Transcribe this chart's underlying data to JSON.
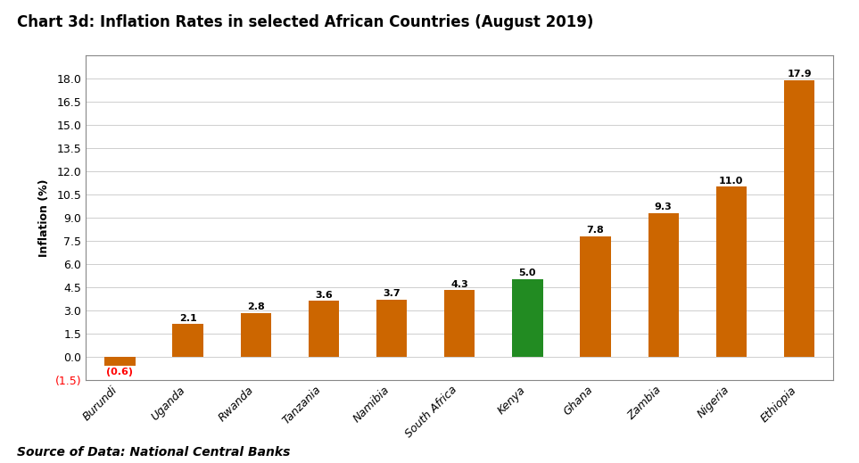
{
  "title": "Chart 3d: Inflation Rates in selected African Countries (August 2019)",
  "source": "Source of Data: National Central Banks",
  "categories": [
    "Burundi",
    "Uganda",
    "Rwanda",
    "Tanzania",
    "Namibia",
    "South Africa",
    "Kenya",
    "Ghana",
    "Zambia",
    "Nigeria",
    "Ethiopia"
  ],
  "values": [
    -0.6,
    2.1,
    2.8,
    3.6,
    3.7,
    4.3,
    5.0,
    7.8,
    9.3,
    11.0,
    17.9
  ],
  "bar_colors": [
    "#CC6600",
    "#CC6600",
    "#CC6600",
    "#CC6600",
    "#CC6600",
    "#CC6600",
    "#228B22",
    "#CC6600",
    "#CC6600",
    "#CC6600",
    "#CC6600"
  ],
  "bar_highlight": [
    "#E87820",
    "#E87820",
    "#E87820",
    "#E87820",
    "#E87820",
    "#E87820",
    "#32CD32",
    "#E87820",
    "#E87820",
    "#E87820",
    "#E87820"
  ],
  "ylabel": "Inflation (%)",
  "ylim": [
    -1.5,
    19.5
  ],
  "yticks": [
    -1.5,
    0.0,
    1.5,
    3.0,
    4.5,
    6.0,
    7.5,
    9.0,
    10.5,
    12.0,
    13.5,
    15.0,
    16.5,
    18.0
  ],
  "ytick_labels": [
    "(1.5)",
    "0.0",
    "1.5",
    "3.0",
    "4.5",
    "6.0",
    "7.5",
    "9.0",
    "10.5",
    "12.0",
    "13.5",
    "15.0",
    "16.5",
    "18.0"
  ],
  "negative_label_color": "#FF0000",
  "title_fontsize": 12,
  "label_fontsize": 9,
  "axis_fontsize": 9,
  "bar_label_fontsize": 8,
  "background_color": "#FFFFFF",
  "plot_background": "#FFFFFF",
  "grid_color": "#BBBBBB",
  "box_color": "#888888"
}
